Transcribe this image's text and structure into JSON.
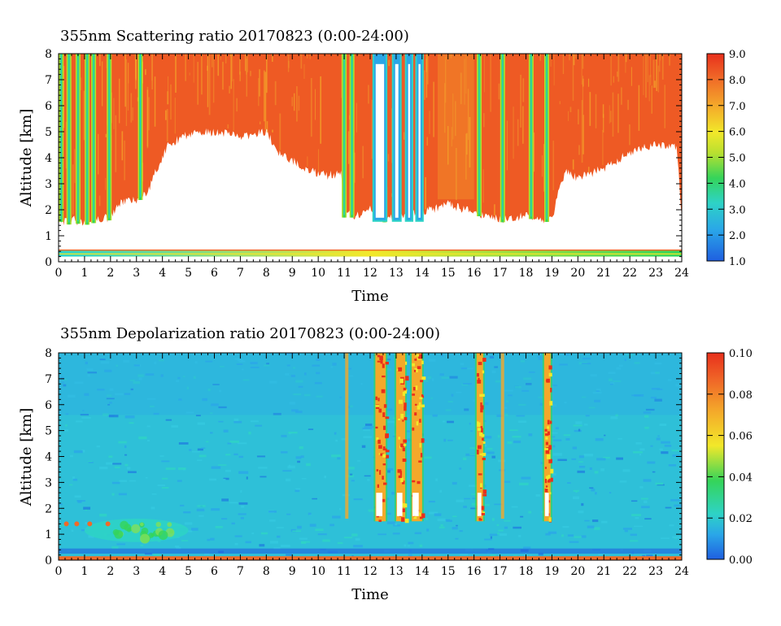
{
  "chart_data": [
    {
      "type": "heatmap",
      "title": "355nm Scattering ratio  20170823 (0:00-24:00)",
      "xlabel": "Time",
      "ylabel": "Altitude [km]",
      "xlim": [
        0,
        24
      ],
      "ylim": [
        0,
        8
      ],
      "xticks": [
        "0",
        "1",
        "2",
        "3",
        "4",
        "5",
        "6",
        "7",
        "8",
        "9",
        "10",
        "11",
        "12",
        "13",
        "14",
        "15",
        "16",
        "17",
        "18",
        "19",
        "20",
        "21",
        "22",
        "23",
        "24"
      ],
      "yticks": [
        "0",
        "1",
        "2",
        "3",
        "4",
        "5",
        "6",
        "7",
        "8"
      ],
      "colorbar": {
        "min": 1.0,
        "max": 9.0,
        "ticks": [
          "1.0",
          "2.0",
          "3.0",
          "4.0",
          "5.0",
          "6.0",
          "7.0",
          "8.0",
          "9.0"
        ]
      },
      "cloud_base_km": [
        [
          0.0,
          1.7
        ],
        [
          0.3,
          1.5
        ],
        [
          0.6,
          1.6
        ],
        [
          1.0,
          1.5
        ],
        [
          1.4,
          1.6
        ],
        [
          2.0,
          1.7
        ],
        [
          2.4,
          2.3
        ],
        [
          3.0,
          2.4
        ],
        [
          3.4,
          2.6
        ],
        [
          3.8,
          3.6
        ],
        [
          4.2,
          4.5
        ],
        [
          5.0,
          4.9
        ],
        [
          6.0,
          5.0
        ],
        [
          7.0,
          4.8
        ],
        [
          8.0,
          5.0
        ],
        [
          8.5,
          4.2
        ],
        [
          9.5,
          3.6
        ],
        [
          10.3,
          3.3
        ],
        [
          10.9,
          3.4
        ],
        [
          11.0,
          1.8
        ],
        [
          11.5,
          1.8
        ],
        [
          12.0,
          2.0
        ],
        [
          12.5,
          1.6
        ],
        [
          13.0,
          1.8
        ],
        [
          14.0,
          1.9
        ],
        [
          15.0,
          2.2
        ],
        [
          16.0,
          1.9
        ],
        [
          16.4,
          1.8
        ],
        [
          17.0,
          1.6
        ],
        [
          18.0,
          1.8
        ],
        [
          18.7,
          1.6
        ],
        [
          19.0,
          1.7
        ],
        [
          19.5,
          3.5
        ],
        [
          20.0,
          3.2
        ],
        [
          21.0,
          3.6
        ],
        [
          22.0,
          4.2
        ],
        [
          23.0,
          4.5
        ],
        [
          23.8,
          4.4
        ],
        [
          24.0,
          1.7
        ]
      ],
      "cloud_top_km": 8.0,
      "low_layer_km": [
        0.2,
        0.45
      ],
      "vertical_streaks_h": [
        0.1,
        0.4,
        0.75,
        1.1,
        1.35,
        1.95,
        3.15,
        11.0,
        11.3,
        12.2,
        12.55,
        13.0,
        13.45,
        13.85,
        16.2,
        17.1,
        18.2,
        18.8
      ],
      "low_ratio_columns_h": [
        [
          12.15,
          12.6
        ],
        [
          12.9,
          13.15
        ],
        [
          13.4,
          13.6
        ],
        [
          13.8,
          14.0
        ]
      ]
    },
    {
      "type": "heatmap",
      "title": "355nm Depolarization ratio  20170823 (0:00-24:00)",
      "xlabel": "Time",
      "ylabel": "Altitude [km]",
      "xlim": [
        0,
        24
      ],
      "ylim": [
        0,
        8
      ],
      "xticks": [
        "0",
        "1",
        "2",
        "3",
        "4",
        "5",
        "6",
        "7",
        "8",
        "9",
        "10",
        "11",
        "12",
        "13",
        "14",
        "15",
        "16",
        "17",
        "18",
        "19",
        "20",
        "21",
        "22",
        "23",
        "24"
      ],
      "yticks": [
        "0",
        "1",
        "2",
        "3",
        "4",
        "5",
        "6",
        "7",
        "8"
      ],
      "colorbar": {
        "min": 0.0,
        "max": 0.1,
        "ticks": [
          "0.00",
          "0.02",
          "0.04",
          "0.06",
          "0.08",
          "0.10"
        ]
      },
      "background_value": 0.018,
      "high_depol_columns_h": [
        [
          12.2,
          12.6
        ],
        [
          13.0,
          13.35
        ],
        [
          13.6,
          14.0
        ],
        [
          16.1,
          16.35
        ],
        [
          18.7,
          18.95
        ]
      ],
      "aerosol_patch": {
        "time_h": [
          1.0,
          5.0
        ],
        "alt_km": [
          0.7,
          1.6
        ],
        "value": 0.04
      },
      "surface_layer_km": [
        0.0,
        0.15
      ]
    }
  ]
}
